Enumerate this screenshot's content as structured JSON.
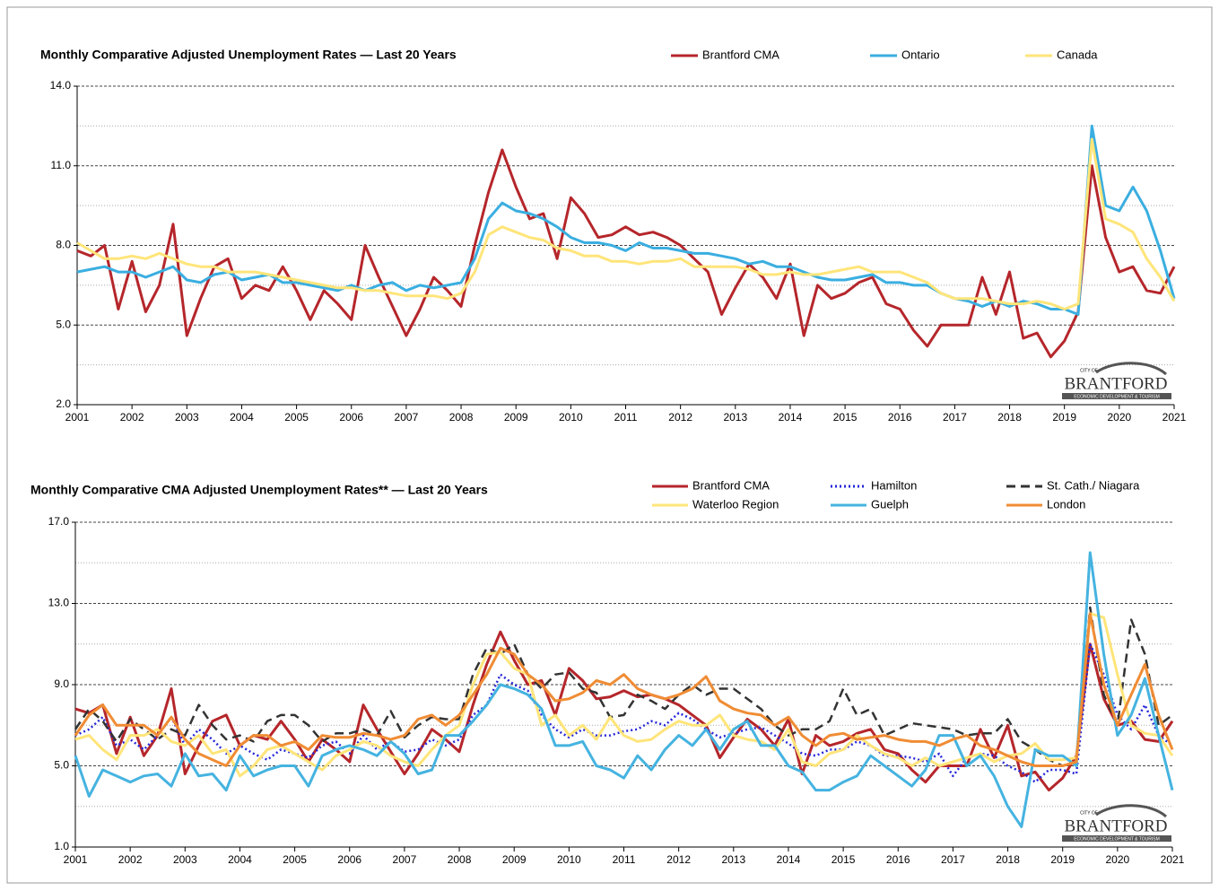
{
  "chart_data": [
    {
      "type": "line",
      "title": "Monthly Comparative Adjusted Unemployment Rates  —  Last  20 Years",
      "logo": {
        "prefix": "CITY OF",
        "name": "BRANTFORD",
        "tagline": "ECONOMIC DEVELOPMENT & TOURISM"
      },
      "x": [
        2001,
        2001.25,
        2001.5,
        2001.75,
        2002,
        2002.25,
        2002.5,
        2002.75,
        2003,
        2003.25,
        2003.5,
        2003.75,
        2004,
        2004.25,
        2004.5,
        2004.75,
        2005,
        2005.25,
        2005.5,
        2005.75,
        2006,
        2006.25,
        2006.5,
        2006.75,
        2007,
        2007.25,
        2007.5,
        2007.75,
        2008,
        2008.25,
        2008.5,
        2008.75,
        2009,
        2009.25,
        2009.5,
        2009.75,
        2010,
        2010.25,
        2010.5,
        2010.75,
        2011,
        2011.25,
        2011.5,
        2011.75,
        2012,
        2012.25,
        2012.5,
        2012.75,
        2013,
        2013.25,
        2013.5,
        2013.75,
        2014,
        2014.25,
        2014.5,
        2014.75,
        2015,
        2015.25,
        2015.5,
        2015.75,
        2016,
        2016.25,
        2016.5,
        2016.75,
        2017,
        2017.25,
        2017.5,
        2017.75,
        2018,
        2018.25,
        2018.5,
        2018.75,
        2019,
        2019.25,
        2019.5,
        2019.75,
        2020,
        2020.25,
        2020.5,
        2020.75,
        2021
      ],
      "series": [
        {
          "name": "Brantford CMA",
          "color": "#b5262b",
          "dash": "solid",
          "values": [
            7.8,
            7.6,
            8.0,
            5.6,
            7.4,
            5.5,
            6.5,
            8.8,
            4.6,
            6.0,
            7.2,
            7.5,
            6.0,
            6.5,
            6.3,
            7.2,
            6.3,
            5.2,
            6.3,
            5.8,
            5.2,
            8.0,
            6.8,
            5.7,
            4.6,
            5.6,
            6.8,
            6.3,
            5.7,
            8.0,
            10.0,
            11.6,
            10.2,
            9.0,
            9.2,
            7.5,
            9.8,
            9.2,
            8.3,
            8.4,
            8.7,
            8.4,
            8.5,
            8.3,
            8.0,
            7.5,
            7.0,
            5.4,
            6.4,
            7.3,
            6.8,
            6.0,
            7.3,
            4.6,
            6.5,
            6.0,
            6.2,
            6.6,
            6.8,
            5.8,
            5.6,
            4.8,
            4.2,
            5.0,
            5.0,
            5.0,
            6.8,
            5.4,
            7.0,
            4.5,
            4.7,
            3.8,
            4.4,
            5.5,
            11.0,
            8.3,
            7.0,
            7.2,
            6.3,
            6.2,
            7.2
          ]
        },
        {
          "name": "Ontario",
          "color": "#3aaee0",
          "dash": "solid",
          "values": [
            7.0,
            7.1,
            7.2,
            7.0,
            7.0,
            6.8,
            7.0,
            7.2,
            6.7,
            6.6,
            6.9,
            7.0,
            6.7,
            6.8,
            6.9,
            6.6,
            6.6,
            6.5,
            6.4,
            6.3,
            6.5,
            6.3,
            6.5,
            6.6,
            6.3,
            6.5,
            6.4,
            6.5,
            6.6,
            7.5,
            9.0,
            9.6,
            9.3,
            9.2,
            9.0,
            8.7,
            8.3,
            8.1,
            8.1,
            8.0,
            7.8,
            8.1,
            7.9,
            7.9,
            7.8,
            7.7,
            7.7,
            7.6,
            7.5,
            7.3,
            7.4,
            7.2,
            7.2,
            7.0,
            6.8,
            6.7,
            6.7,
            6.8,
            6.9,
            6.6,
            6.6,
            6.5,
            6.5,
            6.2,
            6.0,
            5.9,
            5.7,
            5.9,
            5.7,
            5.9,
            5.8,
            5.6,
            5.6,
            5.4,
            12.5,
            9.5,
            9.3,
            10.2,
            9.3,
            7.8,
            6.0
          ]
        },
        {
          "name": "Canada",
          "color": "#ffe57a",
          "dash": "solid",
          "values": [
            8.1,
            7.8,
            7.5,
            7.5,
            7.6,
            7.5,
            7.7,
            7.5,
            7.3,
            7.2,
            7.2,
            7.0,
            7.0,
            7.0,
            6.9,
            6.8,
            6.7,
            6.6,
            6.5,
            6.4,
            6.4,
            6.3,
            6.3,
            6.2,
            6.1,
            6.1,
            6.1,
            6.0,
            6.2,
            7.0,
            8.4,
            8.7,
            8.5,
            8.3,
            8.2,
            7.9,
            7.8,
            7.6,
            7.6,
            7.4,
            7.4,
            7.3,
            7.4,
            7.4,
            7.5,
            7.2,
            7.2,
            7.2,
            7.2,
            7.1,
            6.9,
            6.9,
            7.0,
            6.9,
            6.9,
            7.0,
            7.1,
            7.2,
            7.0,
            7.0,
            7.0,
            6.8,
            6.6,
            6.2,
            6.0,
            6.0,
            6.0,
            5.9,
            5.8,
            5.8,
            5.9,
            5.8,
            5.6,
            5.8,
            12.0,
            9.0,
            8.8,
            8.5,
            7.5,
            6.8,
            5.9
          ]
        }
      ],
      "xlim": [
        2001,
        2021
      ],
      "xticks": [
        2001,
        2002,
        2003,
        2004,
        2005,
        2006,
        2007,
        2008,
        2009,
        2010,
        2011,
        2012,
        2013,
        2014,
        2015,
        2016,
        2017,
        2018,
        2019,
        2020,
        2021
      ],
      "ylim": [
        2,
        14
      ],
      "yticks": [
        {
          "value": 2,
          "label": "2.0"
        },
        {
          "value": 5,
          "label": "5.0"
        },
        {
          "value": 8,
          "label": "8.0"
        },
        {
          "value": 11,
          "label": "11.0"
        },
        {
          "value": 14,
          "label": "14.0"
        }
      ],
      "minor_yticks": [
        3.5,
        6.5,
        9.5,
        12.5
      ],
      "grid": true
    },
    {
      "type": "line",
      "title": "Monthly Comparative CMA Adjusted Unemployment Rates**  —  Last 20 Years",
      "logo": {
        "prefix": "CITY OF",
        "name": "BRANTFORD",
        "tagline": "ECONOMIC DEVELOPMENT & TOURISM"
      },
      "x": [
        2001,
        2001.25,
        2001.5,
        2001.75,
        2002,
        2002.25,
        2002.5,
        2002.75,
        2003,
        2003.25,
        2003.5,
        2003.75,
        2004,
        2004.25,
        2004.5,
        2004.75,
        2005,
        2005.25,
        2005.5,
        2005.75,
        2006,
        2006.25,
        2006.5,
        2006.75,
        2007,
        2007.25,
        2007.5,
        2007.75,
        2008,
        2008.25,
        2008.5,
        2008.75,
        2009,
        2009.25,
        2009.5,
        2009.75,
        2010,
        2010.25,
        2010.5,
        2010.75,
        2011,
        2011.25,
        2011.5,
        2011.75,
        2012,
        2012.25,
        2012.5,
        2012.75,
        2013,
        2013.25,
        2013.5,
        2013.75,
        2014,
        2014.25,
        2014.5,
        2014.75,
        2015,
        2015.25,
        2015.5,
        2015.75,
        2016,
        2016.25,
        2016.5,
        2016.75,
        2017,
        2017.25,
        2017.5,
        2017.75,
        2018,
        2018.25,
        2018.5,
        2018.75,
        2019,
        2019.25,
        2019.5,
        2019.75,
        2020,
        2020.25,
        2020.5,
        2020.75,
        2021
      ],
      "series": [
        {
          "name": "Brantford CMA",
          "color": "#b5262b",
          "dash": "solid",
          "values": [
            7.8,
            7.6,
            8.0,
            5.6,
            7.4,
            5.5,
            6.5,
            8.8,
            4.6,
            6.0,
            7.2,
            7.5,
            6.0,
            6.5,
            6.3,
            7.2,
            6.3,
            5.2,
            6.3,
            5.8,
            5.2,
            8.0,
            6.8,
            5.7,
            4.6,
            5.6,
            6.8,
            6.3,
            5.7,
            8.0,
            10.0,
            11.6,
            10.2,
            9.0,
            9.2,
            7.5,
            9.8,
            9.2,
            8.3,
            8.4,
            8.7,
            8.4,
            8.5,
            8.3,
            8.0,
            7.5,
            7.0,
            5.4,
            6.4,
            7.3,
            6.8,
            6.0,
            7.3,
            4.6,
            6.5,
            6.0,
            6.2,
            6.6,
            6.8,
            5.8,
            5.6,
            4.8,
            4.2,
            5.0,
            5.0,
            5.0,
            6.8,
            5.4,
            7.0,
            4.5,
            4.7,
            3.8,
            4.4,
            5.5,
            11.0,
            8.3,
            7.0,
            7.2,
            6.3,
            6.2,
            7.2
          ]
        },
        {
          "name": "Hamilton",
          "color": "#2626d9",
          "dash": "dotted",
          "values": [
            6.5,
            6.8,
            7.4,
            6.0,
            6.3,
            5.8,
            6.5,
            7.4,
            6.0,
            6.8,
            6.3,
            5.6,
            6.0,
            5.6,
            5.3,
            5.8,
            5.6,
            5.4,
            6.0,
            6.2,
            5.6,
            6.5,
            5.8,
            6.2,
            5.7,
            5.8,
            6.3,
            6.0,
            6.3,
            7.5,
            8.0,
            9.5,
            9.0,
            8.7,
            7.5,
            6.8,
            6.4,
            6.8,
            6.5,
            6.5,
            6.7,
            6.8,
            7.2,
            7.0,
            7.6,
            7.3,
            6.8,
            6.4,
            6.6,
            6.8,
            6.9,
            6.5,
            6.1,
            5.6,
            5.5,
            5.8,
            5.8,
            6.2,
            6.0,
            5.5,
            5.5,
            5.4,
            5.2,
            5.6,
            4.5,
            5.4,
            5.6,
            5.5,
            5.0,
            4.7,
            4.2,
            4.8,
            4.8,
            4.6,
            11.0,
            9.5,
            7.5,
            6.8,
            8.0,
            6.5,
            6.0
          ]
        },
        {
          "name": "St. Cath./ Niagara",
          "color": "#333333",
          "dash": "dashed",
          "values": [
            6.8,
            7.8,
            7.2,
            6.2,
            7.3,
            6.8,
            6.3,
            6.8,
            6.5,
            8.0,
            7.0,
            6.3,
            6.5,
            6.2,
            7.2,
            7.5,
            7.5,
            7.0,
            6.2,
            6.6,
            6.6,
            6.8,
            6.5,
            7.7,
            6.4,
            7.0,
            7.4,
            7.3,
            7.3,
            9.5,
            10.8,
            10.5,
            11.0,
            9.5,
            8.8,
            9.5,
            9.6,
            8.8,
            8.6,
            7.4,
            7.5,
            8.5,
            8.2,
            7.8,
            8.5,
            9.0,
            8.5,
            8.8,
            8.8,
            8.3,
            7.8,
            7.0,
            6.5,
            6.8,
            6.8,
            7.2,
            8.8,
            7.5,
            7.8,
            6.5,
            6.8,
            7.1,
            7.0,
            6.9,
            6.8,
            6.5,
            6.6,
            6.6,
            7.3,
            6.2,
            5.8,
            5.3,
            5.0,
            5.2,
            12.8,
            8.5,
            7.0,
            12.2,
            10.5,
            7.0,
            7.5
          ]
        },
        {
          "name": "Waterloo Region",
          "color": "#ffe57a",
          "dash": "solid",
          "values": [
            6.3,
            6.5,
            5.8,
            5.3,
            6.5,
            6.5,
            6.8,
            6.2,
            6.0,
            6.5,
            5.6,
            5.8,
            4.5,
            5.0,
            5.8,
            6.0,
            5.6,
            5.2,
            4.8,
            5.5,
            5.8,
            6.2,
            6.0,
            5.5,
            5.2,
            5.0,
            5.8,
            6.5,
            7.0,
            9.0,
            10.5,
            10.6,
            9.8,
            9.5,
            7.0,
            7.5,
            6.5,
            7.0,
            6.3,
            7.4,
            6.5,
            6.2,
            6.3,
            6.8,
            7.2,
            7.0,
            7.0,
            7.5,
            6.5,
            6.3,
            6.2,
            5.8,
            6.8,
            5.2,
            5.0,
            5.6,
            5.8,
            6.5,
            6.0,
            5.6,
            5.4,
            5.0,
            5.4,
            5.0,
            5.2,
            5.4,
            5.6,
            5.2,
            5.5,
            5.6,
            6.1,
            5.3,
            5.3,
            5.4,
            12.5,
            12.3,
            9.5,
            7.0,
            6.6,
            6.5,
            5.5
          ]
        },
        {
          "name": "Guelph",
          "color": "#45b3e0",
          "dash": "solid",
          "values": [
            5.5,
            3.5,
            4.8,
            4.5,
            4.2,
            4.5,
            4.6,
            4.0,
            5.6,
            4.5,
            4.6,
            3.8,
            5.5,
            4.5,
            4.8,
            5.0,
            5.0,
            4.0,
            5.5,
            5.8,
            6.0,
            5.8,
            5.5,
            6.2,
            5.6,
            4.6,
            4.8,
            6.5,
            6.5,
            7.2,
            8.0,
            9.0,
            8.8,
            8.5,
            7.8,
            6.0,
            6.0,
            6.2,
            5.0,
            4.8,
            4.4,
            5.5,
            4.8,
            5.8,
            6.5,
            6.0,
            6.8,
            5.8,
            6.8,
            7.2,
            6.0,
            6.0,
            5.0,
            4.7,
            3.8,
            3.8,
            4.2,
            4.5,
            5.5,
            5.0,
            4.5,
            4.0,
            4.8,
            6.5,
            6.5,
            5.0,
            5.5,
            4.5,
            3.0,
            2.0,
            5.8,
            5.5,
            5.5,
            5.0,
            15.5,
            10.5,
            6.5,
            7.5,
            9.3,
            6.5,
            3.8
          ]
        },
        {
          "name": "London",
          "color": "#f08c34",
          "dash": "solid",
          "values": [
            6.5,
            7.5,
            8.0,
            7.0,
            7.0,
            7.0,
            6.5,
            7.4,
            6.3,
            5.6,
            5.3,
            5.0,
            6.0,
            6.5,
            6.5,
            6.0,
            6.2,
            5.8,
            6.5,
            6.4,
            6.4,
            6.6,
            6.5,
            6.3,
            6.5,
            7.3,
            7.5,
            7.0,
            7.5,
            8.5,
            9.5,
            10.8,
            10.5,
            9.5,
            9.0,
            8.2,
            8.3,
            8.6,
            9.2,
            9.0,
            9.5,
            8.8,
            8.5,
            8.3,
            8.5,
            8.8,
            9.4,
            8.2,
            7.8,
            7.6,
            7.5,
            7.0,
            7.4,
            6.5,
            6.0,
            6.5,
            6.6,
            6.3,
            6.4,
            6.5,
            6.3,
            6.2,
            6.2,
            6.0,
            6.3,
            6.5,
            6.0,
            5.8,
            5.5,
            5.2,
            5.0,
            5.0,
            5.0,
            5.2,
            12.5,
            9.0,
            7.0,
            8.5,
            10.0,
            7.5,
            5.8
          ]
        }
      ],
      "xlim": [
        2001,
        2021
      ],
      "xticks": [
        2001,
        2002,
        2003,
        2004,
        2005,
        2006,
        2007,
        2008,
        2009,
        2010,
        2011,
        2012,
        2013,
        2014,
        2015,
        2016,
        2017,
        2018,
        2019,
        2020,
        2021
      ],
      "ylim": [
        1,
        17
      ],
      "yticks": [
        {
          "value": 1,
          "label": "1.0"
        },
        {
          "value": 5,
          "label": "5.0"
        },
        {
          "value": 9,
          "label": "9.0"
        },
        {
          "value": 13,
          "label": "13.0"
        },
        {
          "value": 17,
          "label": "17.0"
        }
      ],
      "minor_yticks": [
        3,
        7,
        11,
        15
      ],
      "grid": true
    }
  ]
}
